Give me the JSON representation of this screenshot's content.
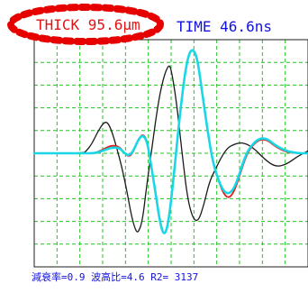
{
  "header": {
    "thickness_text": "THICK  95.6μm",
    "time_text": "TIME  46.6ns"
  },
  "footer": {
    "stats_text": "減衰率=0.9  波高比=4.6  R2=  3137"
  },
  "colors": {
    "grid": "#22c322",
    "frame": "#1e1e1e",
    "thickness_text": "#e11414",
    "time_text": "#1212e0",
    "highlight_oval": "#e60000",
    "waveform_reference": "#1a1a1a",
    "waveform_measured": "#e01a1a",
    "waveform_fit": "#19d7e6"
  },
  "chart_data": {
    "type": "line",
    "grid": true,
    "series": [
      {
        "key": "reference",
        "color": "#1a1a1a",
        "points": [
          [
            0,
            0.0
          ],
          [
            0.18,
            0.0
          ],
          [
            0.19,
            0.02
          ],
          [
            0.21,
            0.08
          ],
          [
            0.23,
            0.18
          ],
          [
            0.25,
            0.26
          ],
          [
            0.265,
            0.28
          ],
          [
            0.28,
            0.22
          ],
          [
            0.3,
            0.06
          ],
          [
            0.32,
            -0.12
          ],
          [
            0.34,
            -0.35
          ],
          [
            0.355,
            -0.55
          ],
          [
            0.37,
            -0.68
          ],
          [
            0.38,
            -0.7
          ],
          [
            0.395,
            -0.6
          ],
          [
            0.41,
            -0.3
          ],
          [
            0.43,
            0.05
          ],
          [
            0.45,
            0.4
          ],
          [
            0.47,
            0.65
          ],
          [
            0.49,
            0.78
          ],
          [
            0.5,
            0.75
          ],
          [
            0.52,
            0.45
          ],
          [
            0.54,
            0.0
          ],
          [
            0.56,
            -0.4
          ],
          [
            0.58,
            -0.58
          ],
          [
            0.6,
            -0.6
          ],
          [
            0.62,
            -0.45
          ],
          [
            0.64,
            -0.25
          ],
          [
            0.66,
            -0.15
          ],
          [
            0.68,
            -0.05
          ],
          [
            0.7,
            0.03
          ],
          [
            0.72,
            0.07
          ],
          [
            0.76,
            0.1
          ],
          [
            0.8,
            0.05
          ],
          [
            0.84,
            -0.05
          ],
          [
            0.88,
            -0.12
          ],
          [
            0.92,
            -0.1
          ],
          [
            0.96,
            -0.03
          ],
          [
            1.0,
            0.02
          ]
        ]
      },
      {
        "key": "measured",
        "color": "#e01a1a",
        "points": [
          [
            0,
            0.0
          ],
          [
            0.18,
            0.0
          ],
          [
            0.22,
            0.0
          ],
          [
            0.25,
            0.03
          ],
          [
            0.28,
            0.07
          ],
          [
            0.31,
            0.06
          ],
          [
            0.33,
            0.0
          ],
          [
            0.345,
            -0.03
          ],
          [
            0.36,
            0.0
          ],
          [
            0.38,
            0.12
          ],
          [
            0.395,
            0.17
          ],
          [
            0.41,
            0.13
          ],
          [
            0.42,
            0.0
          ],
          [
            0.44,
            -0.3
          ],
          [
            0.46,
            -0.62
          ],
          [
            0.475,
            -0.73
          ],
          [
            0.49,
            -0.62
          ],
          [
            0.51,
            -0.2
          ],
          [
            0.53,
            0.3
          ],
          [
            0.55,
            0.7
          ],
          [
            0.565,
            0.88
          ],
          [
            0.58,
            0.92
          ],
          [
            0.595,
            0.84
          ],
          [
            0.61,
            0.6
          ],
          [
            0.63,
            0.25
          ],
          [
            0.65,
            -0.05
          ],
          [
            0.67,
            -0.22
          ],
          [
            0.69,
            -0.35
          ],
          [
            0.71,
            -0.4
          ],
          [
            0.73,
            -0.34
          ],
          [
            0.75,
            -0.2
          ],
          [
            0.77,
            -0.05
          ],
          [
            0.79,
            0.05
          ],
          [
            0.82,
            0.12
          ],
          [
            0.85,
            0.12
          ],
          [
            0.88,
            0.06
          ],
          [
            0.92,
            0.01
          ],
          [
            0.96,
            0.0
          ],
          [
            1.0,
            0.0
          ]
        ]
      },
      {
        "key": "fit",
        "color": "#19d7e6",
        "points": [
          [
            0,
            0.0
          ],
          [
            0.18,
            0.0
          ],
          [
            0.22,
            0.0
          ],
          [
            0.25,
            0.02
          ],
          [
            0.28,
            0.05
          ],
          [
            0.31,
            0.05
          ],
          [
            0.33,
            0.0
          ],
          [
            0.345,
            -0.02
          ],
          [
            0.36,
            0.01
          ],
          [
            0.38,
            0.12
          ],
          [
            0.395,
            0.16
          ],
          [
            0.41,
            0.12
          ],
          [
            0.42,
            0.0
          ],
          [
            0.44,
            -0.3
          ],
          [
            0.46,
            -0.62
          ],
          [
            0.475,
            -0.73
          ],
          [
            0.49,
            -0.62
          ],
          [
            0.51,
            -0.2
          ],
          [
            0.53,
            0.3
          ],
          [
            0.55,
            0.7
          ],
          [
            0.565,
            0.88
          ],
          [
            0.58,
            0.92
          ],
          [
            0.595,
            0.84
          ],
          [
            0.61,
            0.6
          ],
          [
            0.63,
            0.25
          ],
          [
            0.65,
            -0.05
          ],
          [
            0.67,
            -0.22
          ],
          [
            0.69,
            -0.33
          ],
          [
            0.71,
            -0.36
          ],
          [
            0.73,
            -0.31
          ],
          [
            0.75,
            -0.18
          ],
          [
            0.77,
            -0.03
          ],
          [
            0.79,
            0.06
          ],
          [
            0.82,
            0.13
          ],
          [
            0.85,
            0.13
          ],
          [
            0.88,
            0.07
          ],
          [
            0.92,
            0.02
          ],
          [
            0.96,
            0.0
          ],
          [
            1.0,
            0.0
          ]
        ]
      }
    ]
  }
}
